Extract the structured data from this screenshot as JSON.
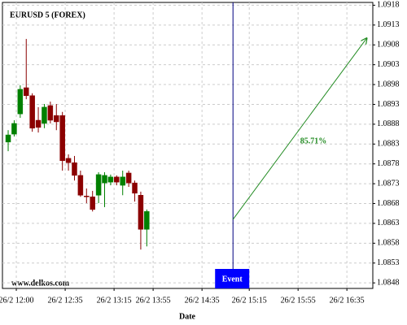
{
  "chart_data": {
    "type": "candlestick",
    "title": "EURUSD 5 (FOREX)",
    "watermark": "www.delkos.com",
    "x_label": "Date",
    "up_color": "#008000",
    "down_color": "#8b0000",
    "open": [
      1.08835,
      1.08855,
      1.08906,
      1.08972,
      1.08952,
      1.0889,
      1.08882,
      1.08927,
      1.08902,
      1.08902,
      1.08794,
      1.08783,
      1.08751,
      1.08699,
      1.08697,
      1.08701,
      1.08732,
      1.08734,
      1.08747,
      1.08726,
      1.08757,
      1.08732,
      1.08701,
      1.08615
    ],
    "high": [
      1.08865,
      1.0889,
      1.08978,
      1.09095,
      1.08958,
      1.08923,
      1.08931,
      1.08937,
      1.08931,
      1.08911,
      1.08804,
      1.088,
      1.08763,
      1.08718,
      1.08712,
      1.08759,
      1.08759,
      1.08753,
      1.08751,
      1.08763,
      1.08763,
      1.08738,
      1.0871,
      1.08665
    ],
    "low": [
      1.08812,
      1.08849,
      1.08896,
      1.08943,
      1.08861,
      1.08859,
      1.0887,
      1.08882,
      1.08865,
      1.08763,
      1.08763,
      1.08738,
      1.08697,
      1.08681,
      1.0866,
      1.08681,
      1.08671,
      1.08726,
      1.08726,
      1.08701,
      1.08722,
      1.08685,
      1.08564,
      1.08572
    ],
    "close": [
      1.08853,
      1.08882,
      1.08968,
      1.08952,
      1.0887,
      1.08872,
      1.08923,
      1.0889,
      1.08886,
      1.08788,
      1.08783,
      1.08751,
      1.08701,
      1.08697,
      1.08665,
      1.08753,
      1.08751,
      1.08747,
      1.08734,
      1.08747,
      1.08732,
      1.08706,
      1.08615,
      1.0866
    ],
    "xlim": [
      -0.95,
      60.5
    ],
    "xticks": [
      {
        "value": 1.35,
        "label": "26/2 12:00"
      },
      {
        "value": 9.46,
        "label": "26/2 12:35"
      },
      {
        "value": 17.57,
        "label": "26/2 13:15"
      },
      {
        "value": 24.05,
        "label": "26/2 13:55"
      },
      {
        "value": 32.16,
        "label": "26/2 14:35"
      },
      {
        "value": 40,
        "label": "26/2 15:15"
      },
      {
        "value": 48.1,
        "label": "26/2 15:55"
      },
      {
        "value": 56.2,
        "label": "26/2 16:35"
      }
    ],
    "ylim": [
      1.08466,
      1.09187
    ],
    "yticks": [
      1.0848,
      1.0853,
      1.0858,
      1.0863,
      1.0868,
      1.0873,
      1.0878,
      1.0883,
      1.0888,
      1.0893,
      1.0898,
      1.0903,
      1.0908,
      1.0913,
      1.0918
    ],
    "grid": true,
    "event": {
      "label": "Event",
      "x": 37.3,
      "color": "#0000ff"
    },
    "projection": {
      "label": "85.71%",
      "x": [
        37.3,
        59.5
      ],
      "y": [
        1.0864,
        1.09097
      ],
      "color": "#228b22"
    }
  }
}
